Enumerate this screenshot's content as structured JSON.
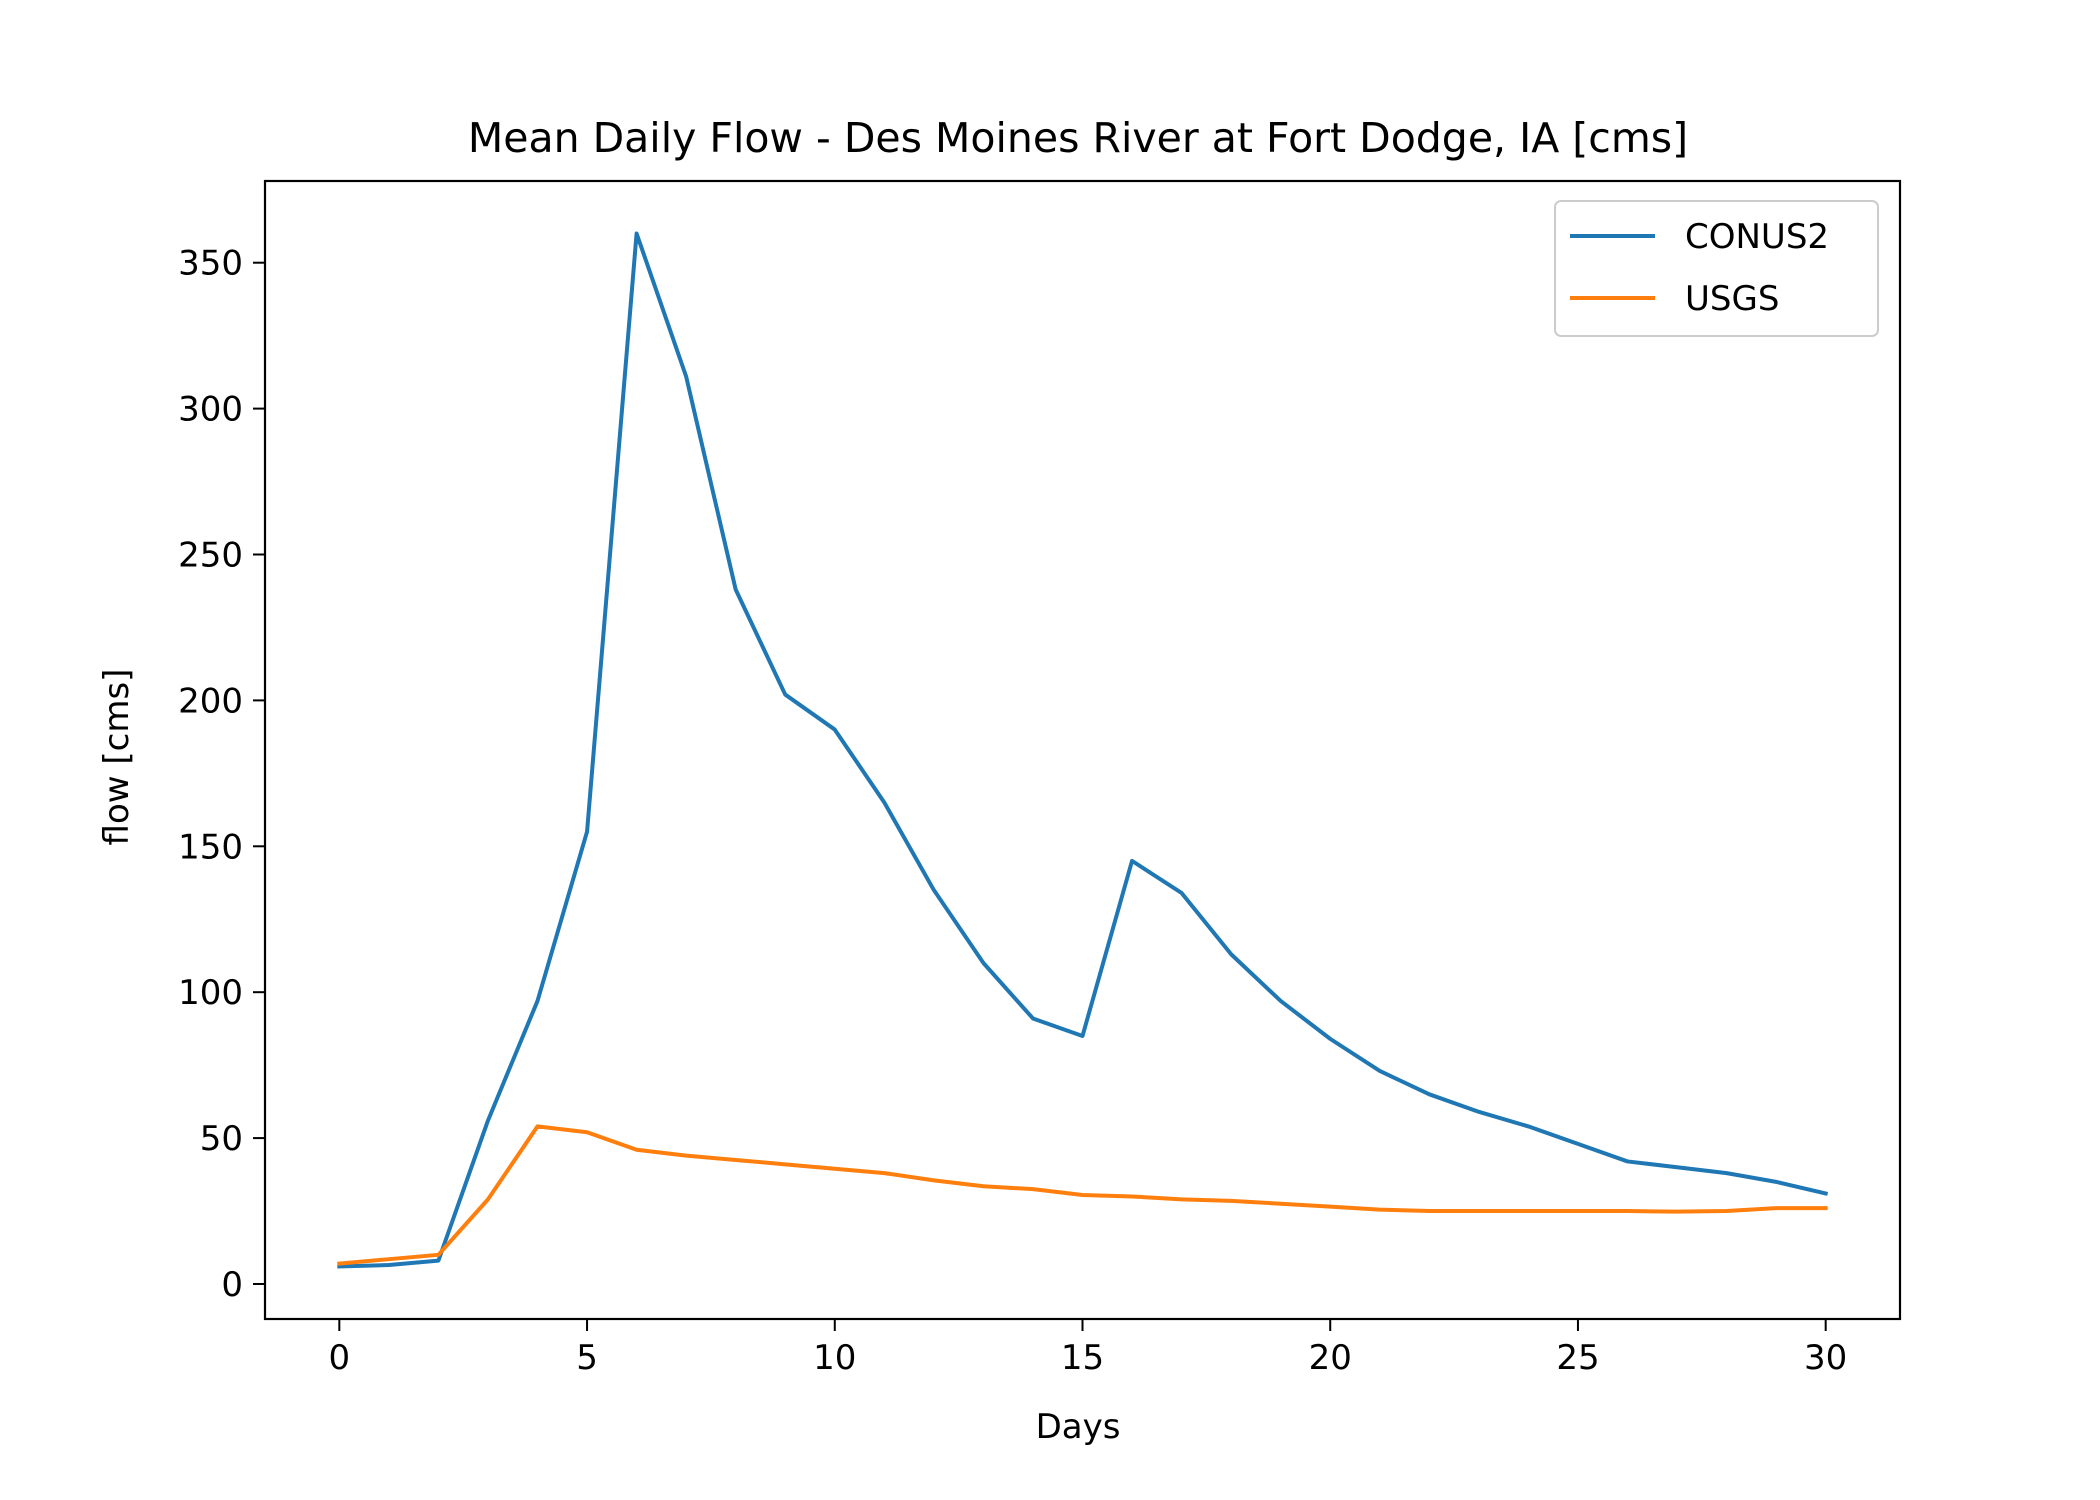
{
  "chart_data": {
    "type": "line",
    "title": "Mean Daily Flow - Des Moines River at Fort Dodge, IA [cms]",
    "xlabel": "Days",
    "ylabel": "flow [cms]",
    "xlim": [
      -1.5,
      31.5
    ],
    "ylim": [
      -12,
      378
    ],
    "xticks": [
      0,
      5,
      10,
      15,
      20,
      25,
      30
    ],
    "yticks": [
      0,
      50,
      100,
      150,
      200,
      250,
      300,
      350
    ],
    "grid": false,
    "legend_position": "top-right",
    "series": [
      {
        "name": "CONUS2",
        "color": "#1f77b4",
        "x": [
          0,
          1,
          2,
          3,
          4,
          5,
          6,
          7,
          8,
          9,
          10,
          11,
          12,
          13,
          14,
          15,
          16,
          17,
          18,
          19,
          20,
          21,
          22,
          23,
          24,
          25,
          26,
          27,
          28,
          29,
          30
        ],
        "y": [
          6,
          6.5,
          8,
          56,
          97,
          155,
          360,
          311,
          238,
          202,
          190,
          165,
          135,
          110,
          91,
          85,
          145,
          134,
          113,
          97,
          84,
          73,
          65,
          59,
          54,
          48,
          42,
          40,
          38,
          35,
          31
        ]
      },
      {
        "name": "USGS",
        "color": "#ff7f0e",
        "x": [
          0,
          1,
          2,
          3,
          4,
          5,
          6,
          7,
          8,
          9,
          10,
          11,
          12,
          13,
          14,
          15,
          16,
          17,
          18,
          19,
          20,
          21,
          22,
          23,
          24,
          25,
          26,
          27,
          28,
          29,
          30
        ],
        "y": [
          7,
          8.5,
          10,
          29,
          54,
          52,
          46,
          44,
          42.5,
          41,
          39.5,
          38,
          35.5,
          33.5,
          32.5,
          30.5,
          30,
          29,
          28.5,
          27.5,
          26.5,
          25.5,
          25,
          25,
          25,
          25,
          25,
          24.8,
          25,
          26,
          26
        ]
      }
    ]
  }
}
